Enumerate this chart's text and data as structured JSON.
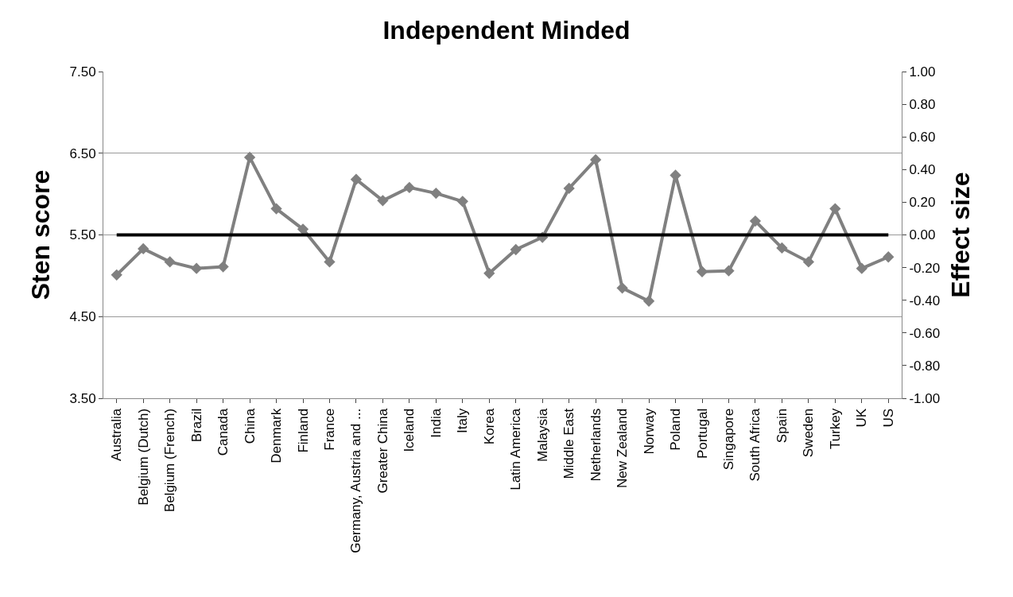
{
  "chart_data": {
    "type": "line",
    "title": "Independent Minded",
    "ylabel": "Sten score",
    "y2label": "Effect size",
    "categories": [
      "Australia",
      "Belgium (Dutch)",
      "Belgium (French)",
      "Brazil",
      "Canada",
      "China",
      "Denmark",
      "Finland",
      "France",
      "Germany, Austria and ...",
      "Greater China",
      "Iceland",
      "India",
      "Italy",
      "Korea",
      "Latin America",
      "Malaysia",
      "Middle East",
      "Netherlands",
      "New Zealand",
      "Norway",
      "Poland",
      "Portugal",
      "Singapore",
      "South Africa",
      "Spain",
      "Sweden",
      "Turkey",
      "UK",
      "US"
    ],
    "series": [
      {
        "color": "#808080",
        "values": [
          5.01,
          5.33,
          5.17,
          5.09,
          5.11,
          6.45,
          5.82,
          5.57,
          5.17,
          6.18,
          5.92,
          6.08,
          6.01,
          5.91,
          5.03,
          5.32,
          5.47,
          6.07,
          6.42,
          4.85,
          4.69,
          6.23,
          5.05,
          5.06,
          5.67,
          5.34,
          5.17,
          5.82,
          5.09,
          5.23
        ]
      }
    ],
    "ylim": [
      3.5,
      7.5
    ],
    "yticks": [
      {
        "value": 3.5,
        "label": "3.50"
      },
      {
        "value": 4.5,
        "label": "4.50"
      },
      {
        "value": 5.5,
        "label": "5.50"
      },
      {
        "value": 6.5,
        "label": "6.50"
      },
      {
        "value": 7.5,
        "label": "7.50"
      }
    ],
    "y2lim": [
      -1,
      1
    ],
    "y2ticks": [
      {
        "value": -1,
        "label": "-1.00"
      },
      {
        "value": -0.8,
        "label": "-0.80"
      },
      {
        "value": -0.6,
        "label": "-0.60"
      },
      {
        "value": -0.4,
        "label": "-0.40"
      },
      {
        "value": -0.2,
        "label": "-0.20"
      },
      {
        "value": 0,
        "label": "0.00"
      },
      {
        "value": 0.2,
        "label": "0.20"
      },
      {
        "value": 0.4,
        "label": "0.40"
      },
      {
        "value": 0.6,
        "label": "0.60"
      },
      {
        "value": 0.8,
        "label": "0.80"
      },
      {
        "value": 1,
        "label": "1.00"
      }
    ],
    "ref_lines": [
      {
        "axis": "y",
        "value": 5.5,
        "color": "#000000"
      }
    ],
    "grid": "y",
    "marker": "diamond",
    "line_style": "solid"
  }
}
